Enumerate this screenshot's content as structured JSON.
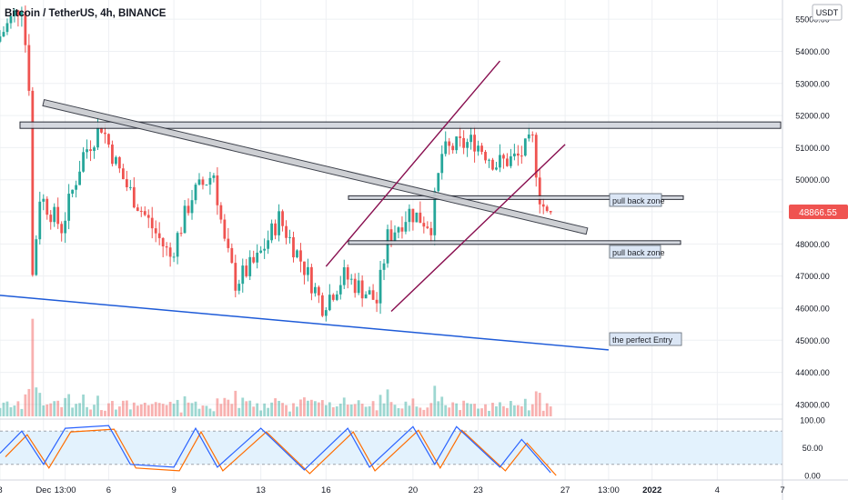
{
  "header": {
    "symbol_title": "Bitcoin / TetherUS, 4h, BINANCE",
    "currency": "USDT"
  },
  "price_axis": {
    "ticks": [
      "55000.00",
      "54000.00",
      "53000.00",
      "52000.00",
      "51000.00",
      "50000.00",
      "49000.00",
      "48000.00",
      "47000.00",
      "46000.00",
      "45000.00",
      "44000.00",
      "43000.00"
    ],
    "last_price": "48866.55"
  },
  "stoch_axis": {
    "ticks": [
      "100.00",
      "50.00",
      "0.00"
    ]
  },
  "time_axis": {
    "ticks": [
      "8",
      "Dec",
      "13:00",
      "6",
      "9",
      "13",
      "16",
      "20",
      "23",
      "27",
      "13:00",
      "2022",
      "4",
      "7"
    ]
  },
  "annotations": {
    "pullback_upper": "pull  back zone",
    "pullback_lower": "pull back zone",
    "entry": "the perfect Entry"
  },
  "colors": {
    "up": "#26a69a",
    "down": "#ef5350",
    "grid": "#eef0f3",
    "channel": "#880e4f",
    "trendline": "#1e5bd8",
    "stoch_k": "#2962ff",
    "stoch_d": "#ff6d00",
    "stoch_band": "#e3f2fd",
    "price_label": "#ef5350"
  },
  "chart_data": {
    "type": "candlestick",
    "title": "Bitcoin / TetherUS, 4h, BINANCE",
    "y_unit": "USDT",
    "ylim": [
      42800,
      55400
    ],
    "x_range": [
      "2021-12-03",
      "2022-01-08"
    ],
    "last_price": 48866.55,
    "price_path": [
      [
        "2021-12-03",
        54300
      ],
      [
        "2021-12-04 04:00",
        55500
      ],
      [
        "2021-12-04 12:00",
        53000
      ],
      [
        "2021-12-04 16:00",
        47000
      ],
      [
        "2021-12-05",
        49500
      ],
      [
        "2021-12-06",
        48500
      ],
      [
        "2021-12-07",
        50800
      ],
      [
        "2021-12-07 20:00",
        51700
      ],
      [
        "2021-12-08 12:00",
        50500
      ],
      [
        "2021-12-09",
        49800
      ],
      [
        "2021-12-10",
        48700
      ],
      [
        "2021-12-11",
        47600
      ],
      [
        "2021-12-12",
        49500
      ],
      [
        "2021-12-13",
        50200
      ],
      [
        "2021-12-13 12:00",
        48000
      ],
      [
        "2021-12-14",
        46800
      ],
      [
        "2021-12-15",
        47500
      ],
      [
        "2021-12-16",
        48800
      ],
      [
        "2021-12-17",
        47500
      ],
      [
        "2021-12-18",
        46100
      ],
      [
        "2021-12-19",
        47000
      ],
      [
        "2021-12-20",
        46500
      ],
      [
        "2021-12-20 12:00",
        46200
      ],
      [
        "2021-12-21",
        48200
      ],
      [
        "2021-12-22",
        49000
      ],
      [
        "2021-12-23",
        48600
      ],
      [
        "2021-12-23 12:00",
        50800
      ],
      [
        "2021-12-24",
        51000
      ],
      [
        "2021-12-25",
        51200
      ],
      [
        "2021-12-26",
        50500
      ],
      [
        "2021-12-27",
        50700
      ],
      [
        "2021-12-27 16:00",
        51200
      ],
      [
        "2021-12-28",
        49500
      ],
      [
        "2021-12-28 08:00",
        48866.55
      ]
    ],
    "horizontal_zones": [
      {
        "from": "2021-12-03",
        "to": "2022-01-08",
        "price_low": 51600,
        "price_high": 51800
      },
      {
        "from": "2021-12-16",
        "to": "2021-12-31",
        "price_low": 49400,
        "price_high": 49500
      },
      {
        "from": "2021-12-16",
        "to": "2021-12-31",
        "price_low": 48000,
        "price_high": 48100
      }
    ],
    "trend_lines": [
      {
        "kind": "descending resistance band",
        "from": [
          "2021-12-05",
          52400
        ],
        "to": [
          "2021-12-30",
          48400
        ]
      },
      {
        "kind": "support line",
        "from": [
          "2021-12-03",
          46400
        ],
        "to": [
          "2021-12-31",
          44700
        ]
      },
      {
        "kind": "rising channel upper",
        "from": [
          "2021-12-18",
          47300
        ],
        "to": [
          "2021-12-26",
          53700
        ]
      },
      {
        "kind": "rising channel lower",
        "from": [
          "2021-12-21",
          45900
        ],
        "to": [
          "2021-12-29",
          51100
        ]
      }
    ],
    "volume_panel": true,
    "indicator": {
      "name": "Stochastic RSI",
      "ylim": [
        0,
        100
      ],
      "band": [
        20,
        80
      ],
      "k_path": [
        [
          "2021-12-03",
          40
        ],
        [
          "2021-12-04",
          80
        ],
        [
          "2021-12-05",
          20
        ],
        [
          "2021-12-06",
          85
        ],
        [
          "2021-12-08",
          90
        ],
        [
          "2021-12-09",
          20
        ],
        [
          "2021-12-11",
          15
        ],
        [
          "2021-12-12",
          85
        ],
        [
          "2021-12-13",
          15
        ],
        [
          "2021-12-15",
          85
        ],
        [
          "2021-12-17",
          10
        ],
        [
          "2021-12-19",
          85
        ],
        [
          "2021-12-20",
          15
        ],
        [
          "2021-12-22",
          88
        ],
        [
          "2021-12-23",
          20
        ],
        [
          "2021-12-24",
          88
        ],
        [
          "2021-12-26",
          15
        ],
        [
          "2021-12-27",
          65
        ],
        [
          "2021-12-28 08:00",
          5
        ]
      ]
    }
  }
}
